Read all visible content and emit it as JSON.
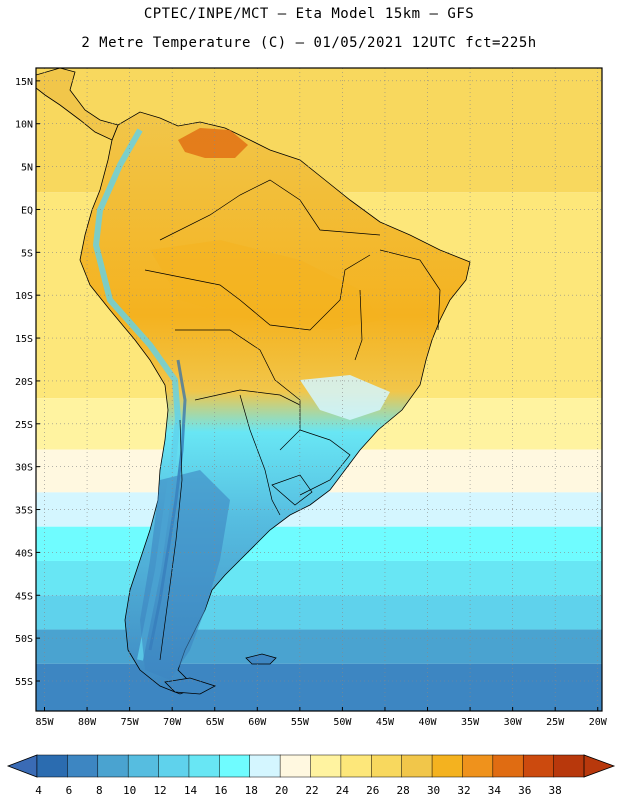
{
  "header": {
    "line1": "CPTEC/INPE/MCT —  Eta Model 15km — GFS",
    "line2": "2 Metre Temperature (C) — 01/05/2021 12UTC fct=225h"
  },
  "map": {
    "lat_labels": [
      "15N",
      "10N",
      "5N",
      "EQ",
      "5S",
      "10S",
      "15S",
      "20S",
      "25S",
      "30S",
      "35S",
      "40S",
      "45S",
      "50S",
      "55S"
    ],
    "lat_values": [
      15,
      10,
      5,
      0,
      -5,
      -10,
      -15,
      -20,
      -25,
      -30,
      -35,
      -40,
      -45,
      -50,
      -55
    ],
    "lon_labels": [
      "85W",
      "80W",
      "75W",
      "70W",
      "65W",
      "60W",
      "55W",
      "50W",
      "45W",
      "40W",
      "35W",
      "30W",
      "25W",
      "20W"
    ],
    "lon_values": [
      -85,
      -80,
      -75,
      -70,
      -65,
      -60,
      -55,
      -50,
      -45,
      -40,
      -35,
      -30,
      -25,
      -20
    ],
    "extent": {
      "lon_min": -86,
      "lon_max": -19.5,
      "lat_min": -58.5,
      "lat_max": 16.5
    }
  },
  "colorbar": {
    "labels": [
      "4",
      "6",
      "8",
      "10",
      "12",
      "14",
      "16",
      "18",
      "20",
      "22",
      "24",
      "26",
      "28",
      "30",
      "32",
      "34",
      "36",
      "38"
    ],
    "colors": [
      "#2b6cb0",
      "#3d86c2",
      "#4aa3d0",
      "#56bde0",
      "#5fd2ec",
      "#68e6f4",
      "#6ffcff",
      "#d4f6ff",
      "#fff8e0",
      "#fff3a0",
      "#fde77a",
      "#f8d85e",
      "#f1c64a",
      "#f4b21f",
      "#ef921c",
      "#e06c12",
      "#cc4a0e",
      "#b8380c"
    ],
    "under_color": "#3a6bb5",
    "over_color": "#b8380c"
  }
}
